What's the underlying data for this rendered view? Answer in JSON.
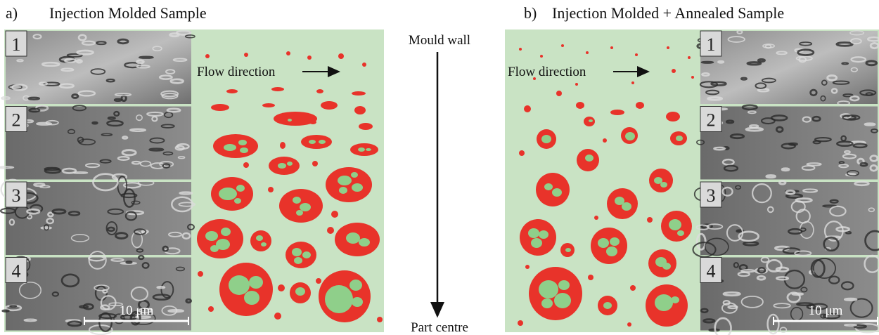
{
  "panel_a": {
    "label": "a)",
    "title": "Injection Molded Sample",
    "flow_label": "Flow direction",
    "tiles": [
      "1",
      "2",
      "3",
      "4"
    ],
    "scale_bar": "10 μm"
  },
  "panel_b": {
    "label": "b)",
    "title": "Injection Molded + Annealed Sample",
    "flow_label": "Flow direction",
    "tiles": [
      "1",
      "2",
      "3",
      "4"
    ],
    "scale_bar": "10 μm"
  },
  "axis": {
    "top": "Mould wall",
    "bottom": "Part centre"
  }
}
